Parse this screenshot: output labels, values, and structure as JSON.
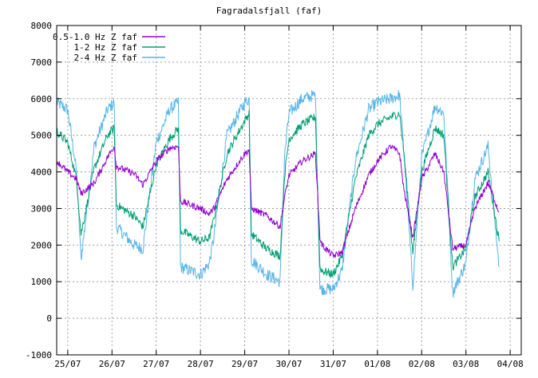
{
  "chart_data": {
    "type": "line",
    "title": "Fagradalsfjall (faf)",
    "xlabel": "",
    "ylabel": "",
    "ylim": [
      -1000,
      8000
    ],
    "yticks": [
      -1000,
      0,
      1000,
      2000,
      3000,
      4000,
      5000,
      6000,
      7000,
      8000
    ],
    "xlim": [
      -0.25,
      10.25
    ],
    "xticks": [
      0,
      1,
      2,
      3,
      4,
      5,
      6,
      7,
      8,
      9,
      10
    ],
    "xtick_labels": [
      "25/07",
      "26/07",
      "27/07",
      "28/07",
      "29/07",
      "30/07",
      "31/07",
      "01/08",
      "02/08",
      "03/08",
      "04/08"
    ],
    "grid": true,
    "legend_position": "top-left",
    "series": [
      {
        "name": "0.5-1.0 Hz Z faf",
        "color": "#9400d3",
        "x": [
          -0.25,
          0.0,
          0.2,
          0.3,
          0.6,
          0.9,
          1.05,
          1.1,
          1.5,
          1.7,
          2.0,
          2.3,
          2.5,
          2.55,
          3.0,
          3.2,
          3.3,
          3.6,
          4.0,
          4.1,
          4.15,
          4.5,
          4.8,
          4.9,
          5.0,
          5.3,
          5.6,
          5.7,
          5.75,
          6.0,
          6.2,
          6.5,
          6.8,
          7.0,
          7.3,
          7.5,
          7.6,
          7.8,
          8.0,
          8.3,
          8.5,
          8.7,
          9.0,
          9.2,
          9.5,
          9.75
        ],
        "values": [
          4300,
          4000,
          3800,
          3400,
          3700,
          4400,
          4700,
          4150,
          3950,
          3650,
          4300,
          4650,
          4700,
          3200,
          3000,
          2850,
          3000,
          3800,
          4500,
          4600,
          3000,
          2800,
          2500,
          3300,
          3900,
          4300,
          4500,
          2200,
          2000,
          1700,
          1800,
          3000,
          3900,
          4300,
          4700,
          4500,
          3500,
          2200,
          3800,
          4500,
          4000,
          1900,
          2000,
          3000,
          3700,
          2900
        ]
      },
      {
        "name": "1-2 Hz Z faf",
        "color": "#009e73",
        "x": [
          -0.25,
          0.0,
          0.2,
          0.3,
          0.6,
          0.9,
          1.05,
          1.1,
          1.5,
          1.7,
          2.0,
          2.3,
          2.5,
          2.55,
          3.0,
          3.2,
          3.3,
          3.6,
          4.0,
          4.1,
          4.15,
          4.5,
          4.8,
          4.9,
          5.0,
          5.3,
          5.6,
          5.7,
          5.75,
          6.0,
          6.2,
          6.5,
          6.8,
          7.0,
          7.3,
          7.5,
          7.6,
          7.8,
          8.0,
          8.3,
          8.5,
          8.7,
          9.0,
          9.2,
          9.5,
          9.75
        ],
        "values": [
          5100,
          4800,
          3800,
          2300,
          4100,
          5000,
          5200,
          3100,
          2800,
          2500,
          4200,
          4900,
          5200,
          2400,
          2100,
          2200,
          2700,
          4500,
          5400,
          5600,
          2300,
          1900,
          1700,
          3900,
          4900,
          5300,
          5500,
          1400,
          1300,
          1200,
          1700,
          3800,
          5000,
          5300,
          5500,
          5600,
          4500,
          1800,
          4000,
          5200,
          5000,
          1400,
          1900,
          3300,
          4000,
          2100
        ]
      },
      {
        "name": "2-4 Hz Z faf",
        "color": "#56b4e9",
        "x": [
          -0.25,
          0.0,
          0.2,
          0.3,
          0.6,
          0.9,
          1.05,
          1.1,
          1.5,
          1.7,
          2.0,
          2.3,
          2.5,
          2.55,
          3.0,
          3.2,
          3.3,
          3.6,
          4.0,
          4.1,
          4.15,
          4.5,
          4.8,
          4.9,
          5.0,
          5.3,
          5.6,
          5.7,
          5.75,
          6.0,
          6.2,
          6.5,
          6.8,
          7.0,
          7.3,
          7.5,
          7.6,
          7.8,
          8.0,
          8.3,
          8.5,
          8.7,
          9.0,
          9.2,
          9.5,
          9.75
        ],
        "values": [
          5900,
          5700,
          4000,
          1600,
          4700,
          5700,
          5900,
          2500,
          2000,
          1900,
          4800,
          5700,
          5900,
          1400,
          1200,
          1500,
          2200,
          5000,
          5900,
          6000,
          1600,
          1200,
          1000,
          4400,
          5600,
          6000,
          6100,
          800,
          800,
          800,
          1300,
          4300,
          5700,
          5900,
          6000,
          6100,
          4500,
          900,
          4400,
          5800,
          5600,
          700,
          1500,
          3800,
          4700,
          1400
        ]
      }
    ]
  }
}
